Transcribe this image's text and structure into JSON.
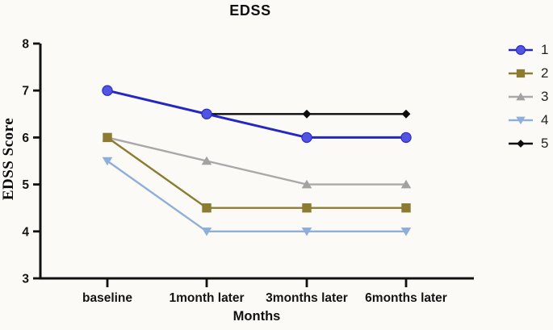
{
  "chart_data": {
    "type": "line",
    "title": "EDSS",
    "xlabel": "Months",
    "ylabel": "EDSS Score",
    "categories": [
      "baseline",
      "1month later",
      "3months later",
      "6months later"
    ],
    "ylim": [
      3,
      8
    ],
    "yticks": [
      8,
      7,
      6,
      5,
      4,
      3
    ],
    "grid": false,
    "legend_position": "right",
    "axis_color": "#111111",
    "tick_label_color": "#141414",
    "background": "#fbfaf7",
    "series": [
      {
        "name": "1",
        "marker": "circle",
        "line_color": "#2527c4",
        "marker_color": "#5254e2",
        "marker_stroke": "#2a2cc6",
        "values": [
          7,
          6.5,
          6,
          6
        ]
      },
      {
        "name": "2",
        "marker": "square",
        "line_color": "#8b7c31",
        "marker_color": "#8b7c31",
        "marker_stroke": null,
        "values": [
          6,
          4.5,
          4.5,
          4.5
        ]
      },
      {
        "name": "3",
        "marker": "triangle-up",
        "line_color": "#a9a9a9",
        "marker_color": "#a2a2a2",
        "marker_stroke": null,
        "values": [
          6,
          5.5,
          5,
          5
        ]
      },
      {
        "name": "4",
        "marker": "triangle-down",
        "line_color": "#8fafd9",
        "marker_color": "#8fafd9",
        "marker_stroke": null,
        "values": [
          5.5,
          4,
          4,
          4
        ]
      },
      {
        "name": "5",
        "marker": "diamond",
        "line_color": "#0d0d0d",
        "marker_color": "#0d0d0d",
        "marker_stroke": null,
        "values": [
          null,
          6.5,
          6.5,
          6.5
        ]
      }
    ]
  }
}
